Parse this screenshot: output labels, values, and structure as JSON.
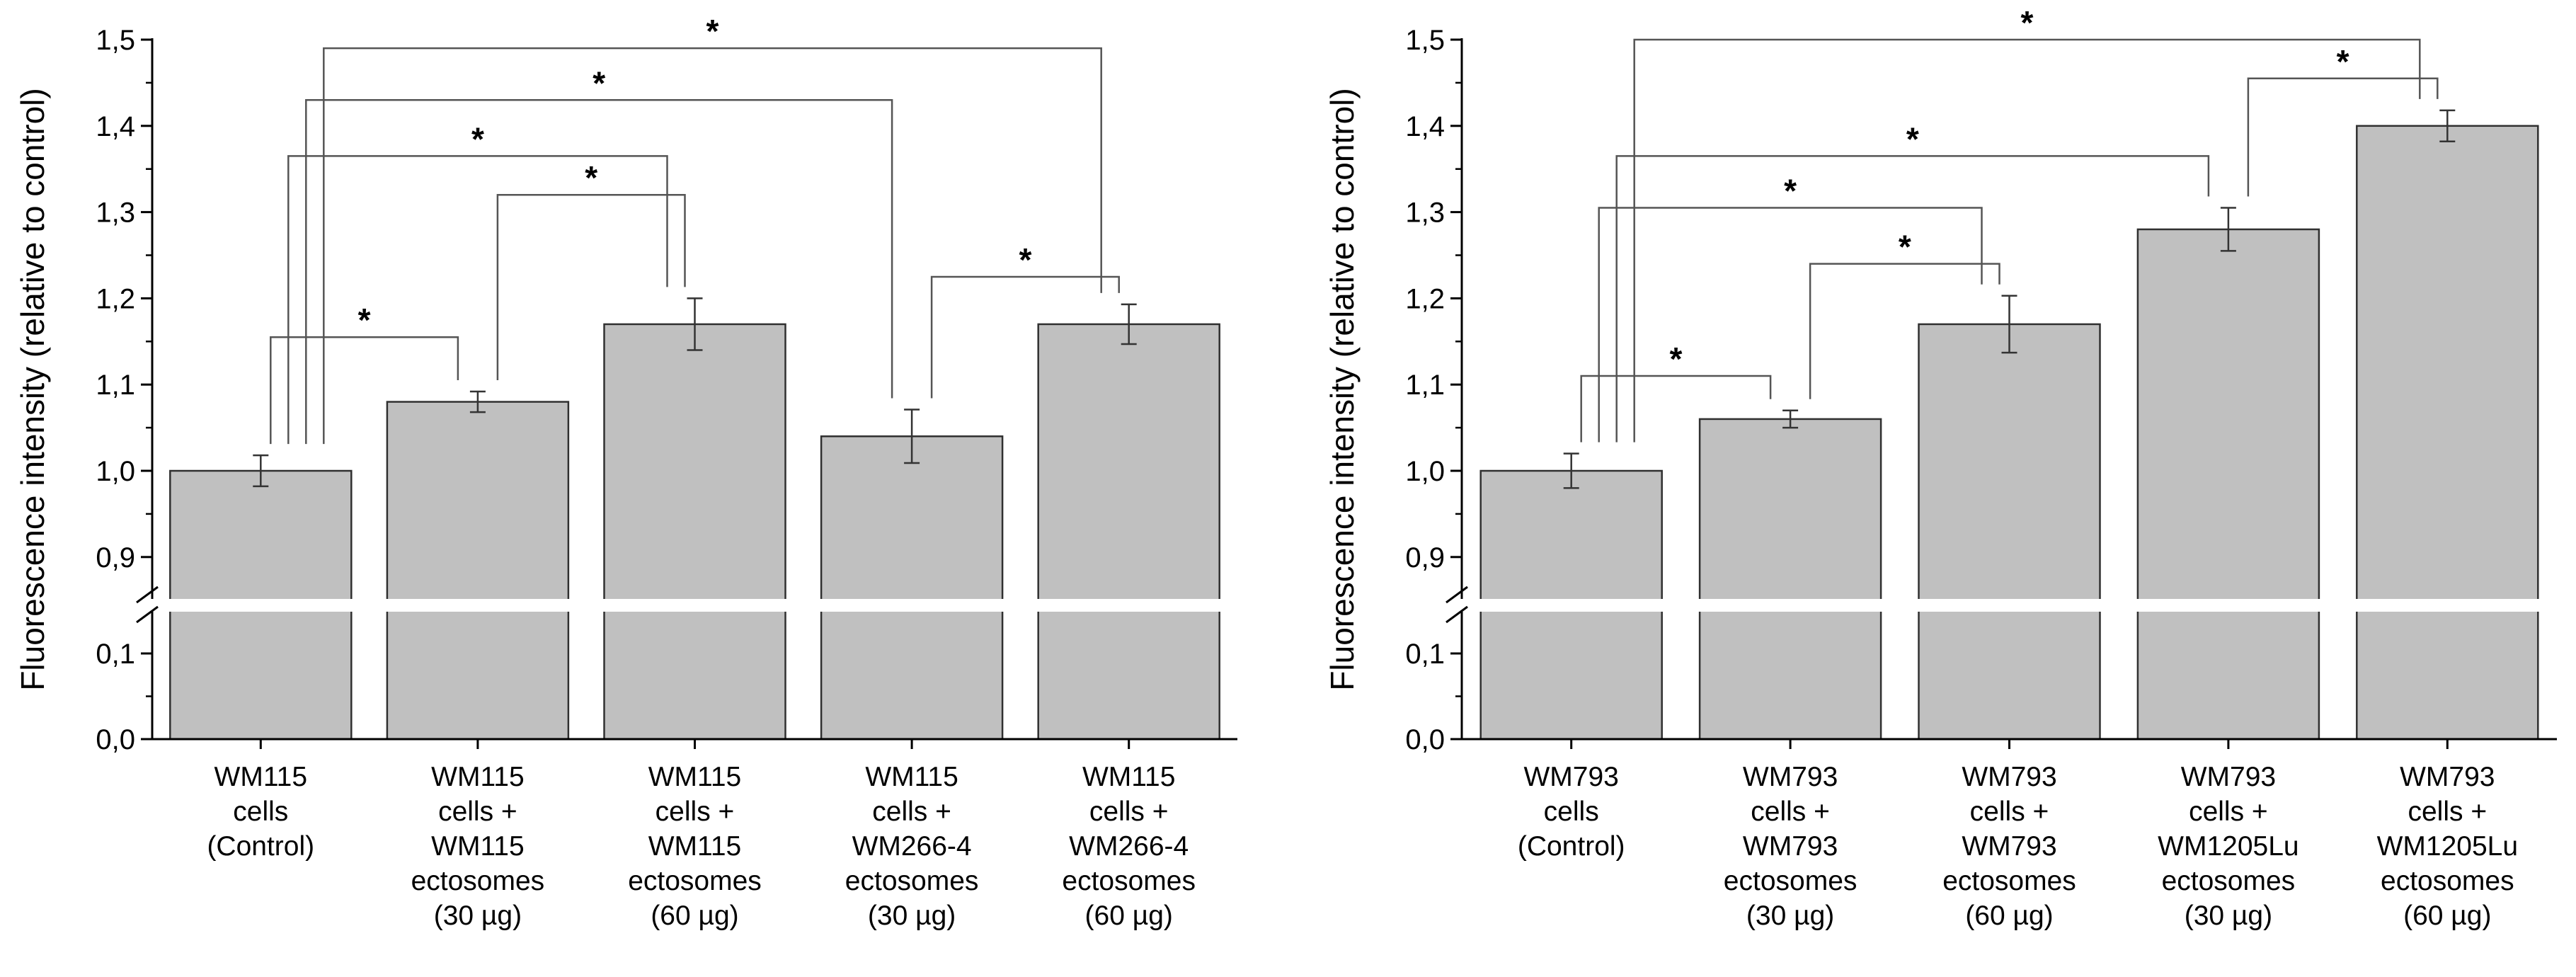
{
  "chart_data": [
    {
      "type": "bar",
      "ylabel": "Fluorescence intensity (relative to control)",
      "ylim": [
        0,
        1.5
      ],
      "axis_break": [
        0.15,
        0.85
      ],
      "yticks": [
        "0,0",
        "0,1",
        "0,9",
        "1,0",
        "1,1",
        "1,2",
        "1,3",
        "1,4",
        "1,5"
      ],
      "categories": [
        [
          "WM115",
          "cells",
          "(Control)"
        ],
        [
          "WM115",
          "cells +",
          "WM115",
          "ectosomes",
          "(30 µg)"
        ],
        [
          "WM115",
          "cells +",
          "WM115",
          "ectosomes",
          "(60 µg)"
        ],
        [
          "WM115",
          "cells +",
          "WM266-4",
          "ectosomes",
          "(30 µg)"
        ],
        [
          "WM115",
          "cells +",
          "WM266-4",
          "ectosomes",
          "(60 µg)"
        ]
      ],
      "values": [
        1.0,
        1.08,
        1.17,
        1.04,
        1.17
      ],
      "errors": [
        0.018,
        0.012,
        0.03,
        0.031,
        0.023
      ],
      "bar_color": "#c0c0c0",
      "significance": [
        {
          "from": 0,
          "to": 1,
          "label": "*",
          "level": 1.155
        },
        {
          "from": 1,
          "to": 2,
          "label": "*",
          "level": 1.32
        },
        {
          "from": 3,
          "to": 4,
          "label": "*",
          "level": 1.225
        },
        {
          "from": 0,
          "to": 2,
          "label": "*",
          "level": 1.365
        },
        {
          "from": 0,
          "to": 3,
          "label": "*",
          "level": 1.43
        },
        {
          "from": 0,
          "to": 4,
          "label": "*",
          "level": 1.49
        }
      ]
    },
    {
      "type": "bar",
      "ylabel": "Fluorescence intensity (relative to control)",
      "ylim": [
        0,
        1.5
      ],
      "axis_break": [
        0.15,
        0.85
      ],
      "yticks": [
        "0,0",
        "0,1",
        "0,9",
        "1,0",
        "1,1",
        "1,2",
        "1,3",
        "1,4",
        "1,5"
      ],
      "categories": [
        [
          "WM793",
          "cells",
          "(Control)"
        ],
        [
          "WM793",
          "cells +",
          "WM793",
          "ectosomes",
          "(30 µg)"
        ],
        [
          "WM793",
          "cells +",
          "WM793",
          "ectosomes",
          "(60 µg)"
        ],
        [
          "WM793",
          "cells +",
          "WM1205Lu",
          "ectosomes",
          "(30 µg)"
        ],
        [
          "WM793",
          "cells +",
          "WM1205Lu",
          "ectosomes",
          "(60 µg)"
        ]
      ],
      "values": [
        1.0,
        1.06,
        1.17,
        1.28,
        1.4
      ],
      "errors": [
        0.02,
        0.01,
        0.033,
        0.025,
        0.018
      ],
      "bar_color": "#c0c0c0",
      "significance": [
        {
          "from": 0,
          "to": 1,
          "label": "*",
          "level": 1.11
        },
        {
          "from": 1,
          "to": 2,
          "label": "*",
          "level": 1.24
        },
        {
          "from": 0,
          "to": 2,
          "label": "*",
          "level": 1.305
        },
        {
          "from": 0,
          "to": 3,
          "label": "*",
          "level": 1.365
        },
        {
          "from": 3,
          "to": 4,
          "label": "*",
          "level": 1.455
        },
        {
          "from": 0,
          "to": 4,
          "label": "*",
          "level": 1.5
        }
      ]
    }
  ]
}
